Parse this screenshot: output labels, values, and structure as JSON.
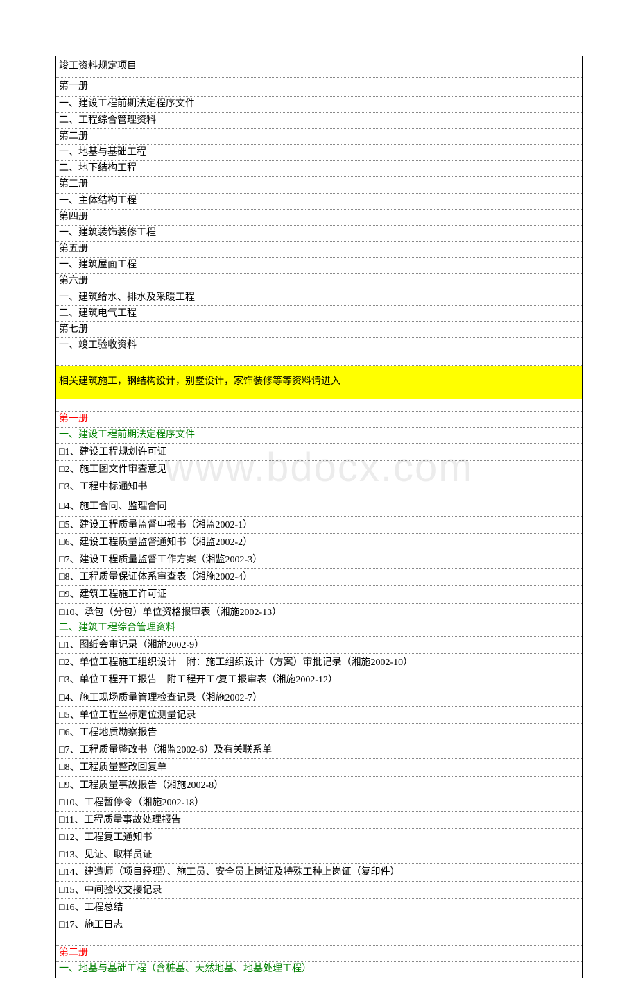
{
  "watermark": "www.bdocx.com",
  "header": "竣工资料规定项目",
  "toc": [
    {
      "text": "第一册",
      "class": "medium"
    },
    {
      "text": "一、建设工程前期法定程序文件",
      "class": ""
    },
    {
      "text": "二、工程综合管理资料",
      "class": ""
    },
    {
      "text": "第二册",
      "class": ""
    },
    {
      "text": "一、地基与基础工程",
      "class": ""
    },
    {
      "text": "二、地下结构工程",
      "class": ""
    },
    {
      "text": "第三册",
      "class": ""
    },
    {
      "text": "一、主体结构工程",
      "class": ""
    },
    {
      "text": "第四册",
      "class": ""
    },
    {
      "text": "一、建筑装饰装修工程",
      "class": ""
    },
    {
      "text": "第五册",
      "class": ""
    },
    {
      "text": "一、建筑屋面工程",
      "class": ""
    },
    {
      "text": "第六册",
      "class": ""
    },
    {
      "text": "一、建筑给水、排水及采暖工程",
      "class": ""
    },
    {
      "text": "二、建筑电气工程",
      "class": ""
    },
    {
      "text": "第七册",
      "class": ""
    },
    {
      "text": "一、竣工验收资料",
      "class": ""
    }
  ],
  "highlight": "相关建筑施工，钢结构设计，别墅设计，家饰装修等等资料请进入",
  "section1": {
    "title": "第一册",
    "sub1": {
      "title": "一、建设工程前期法定程序文件",
      "items": [
        "1、建设工程规划许可证",
        "2、施工图文件审查意见",
        "3、工程中标通知书",
        "4、施工合同、监理合同",
        "5、建设工程质量监督申报书（湘监2002-1）",
        "6、建设工程质量监督通知书（湘监2002-2）",
        "7、建设工程质量监督工作方案（湘监2002-3）",
        "8、工程质量保证体系审查表（湘施2002-4）",
        "9、建筑工程施工许可证",
        "10、承包（分包）单位资格报审表（湘施2002-13）"
      ]
    },
    "sub2": {
      "title": "二、建筑工程综合管理资料",
      "items": [
        "1、图纸会审记录（湘施2002-9）",
        "2、单位工程施工组织设计　附：施工组织设计（方案）审批记录（湘施2002-10）",
        "3、单位工程开工报告　附工程开工/复工报审表（湘施2002-12）",
        "4、施工现场质量管理检查记录（湘施2002-7）",
        "5、单位工程坐标定位测量记录",
        "6、工程地质勘察报告",
        "7、工程质量整改书（湘监2002-6）及有关联系单",
        "8、工程质量整改回复单",
        "9、工程质量事故报告（湘施2002-8）",
        "10、工程暂停令（湘施2002-18）",
        "11、工程质量事故处理报告",
        "12、工程复工通知书",
        "13、见证、取样员证",
        "14、建造师（项目经理）、施工员、安全员上岗证及特殊工种上岗证（复印件）",
        "15、中间验收交接记录",
        "16、工程总结",
        "17、施工日志"
      ]
    }
  },
  "section2": {
    "title": "第二册",
    "sub1": {
      "title": "一、地基与基础工程（含桩基、天然地基、地基处理工程）"
    }
  }
}
